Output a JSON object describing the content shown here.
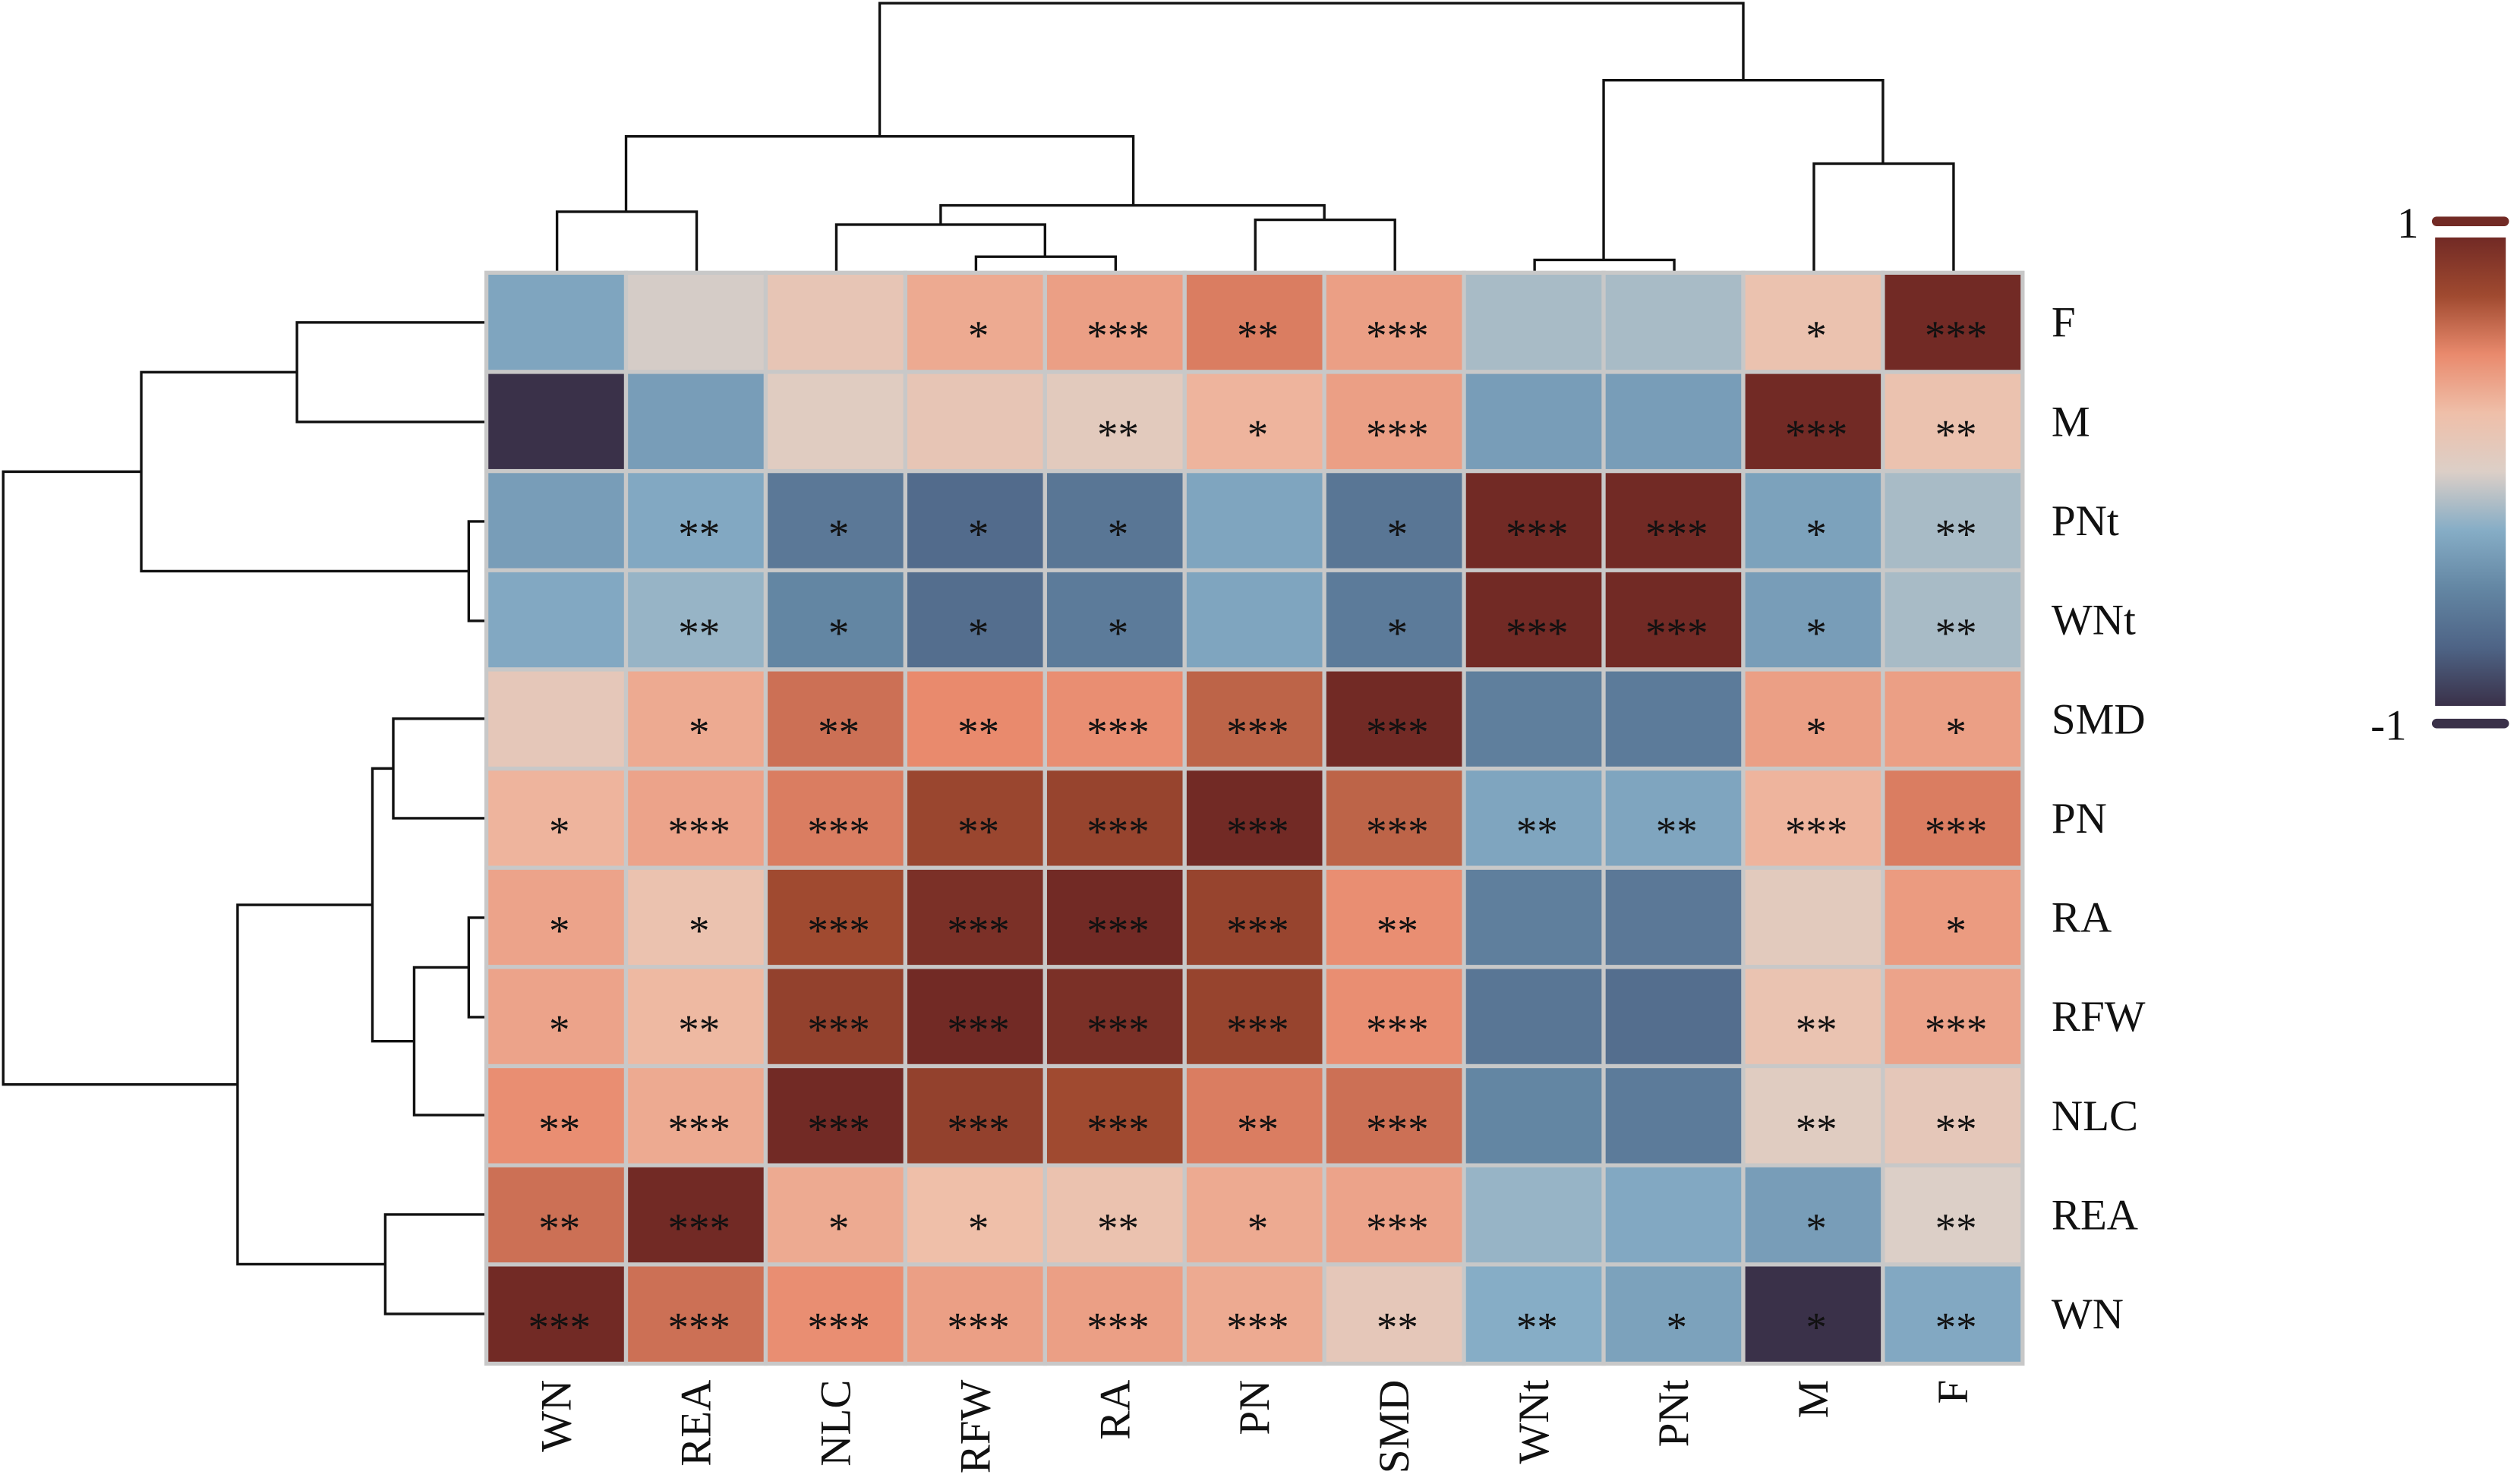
{
  "chart_data": {
    "type": "heatmap",
    "title": "",
    "columns": [
      "WN",
      "REA",
      "NLC",
      "RFW",
      "RA",
      "PN",
      "SMD",
      "WNt",
      "PNt",
      "M",
      "F"
    ],
    "rows": [
      "F",
      "M",
      "PNt",
      "WNt",
      "SMD",
      "PN",
      "RA",
      "RFW",
      "NLC",
      "REA",
      "WN"
    ],
    "values": [
      [
        -0.3,
        -0.02,
        0.15,
        0.35,
        0.4,
        0.55,
        0.4,
        -0.15,
        -0.15,
        0.2,
        1.0
      ],
      [
        -1.0,
        -0.35,
        0.05,
        0.15,
        0.08,
        0.3,
        0.4,
        -0.35,
        -0.35,
        1.0,
        0.2
      ],
      [
        -0.35,
        -0.28,
        -0.6,
        -0.7,
        -0.62,
        -0.3,
        -0.62,
        1.0,
        1.0,
        -0.32,
        -0.15
      ],
      [
        -0.28,
        -0.2,
        -0.5,
        -0.68,
        -0.58,
        -0.3,
        -0.58,
        1.0,
        1.0,
        -0.35,
        -0.15
      ],
      [
        0.12,
        0.35,
        0.6,
        0.5,
        0.48,
        0.65,
        1.0,
        -0.55,
        -0.58,
        0.4,
        0.4
      ],
      [
        0.3,
        0.38,
        0.55,
        0.78,
        0.8,
        1.0,
        0.65,
        -0.3,
        -0.3,
        0.3,
        0.55
      ],
      [
        0.38,
        0.2,
        0.75,
        0.95,
        1.0,
        0.8,
        0.48,
        -0.55,
        -0.6,
        0.08,
        0.42
      ],
      [
        0.38,
        0.28,
        0.82,
        1.0,
        0.95,
        0.8,
        0.48,
        -0.62,
        -0.68,
        0.18,
        0.38
      ],
      [
        0.48,
        0.35,
        1.0,
        0.82,
        0.75,
        0.55,
        0.6,
        -0.5,
        -0.58,
        0.05,
        0.12
      ],
      [
        0.6,
        1.0,
        0.35,
        0.25,
        0.2,
        0.35,
        0.38,
        -0.2,
        -0.28,
        -0.35,
        0.0
      ],
      [
        1.0,
        0.6,
        0.48,
        0.4,
        0.4,
        0.35,
        0.12,
        -0.25,
        -0.32,
        -1.0,
        -0.28
      ]
    ],
    "significance": [
      [
        "",
        "",
        "",
        "*",
        "***",
        "**",
        "***",
        "",
        "",
        "*",
        "***"
      ],
      [
        "",
        "",
        "",
        "",
        "**",
        "*",
        "***",
        "",
        "",
        "***",
        "**"
      ],
      [
        "",
        "**",
        "*",
        "*",
        "*",
        "",
        "*",
        "***",
        "***",
        "*",
        "**"
      ],
      [
        "",
        "**",
        "*",
        "*",
        "*",
        "",
        "*",
        "***",
        "***",
        "*",
        "**"
      ],
      [
        "",
        "*",
        "**",
        "**",
        "***",
        "***",
        "***",
        "",
        "",
        "*",
        "*"
      ],
      [
        "*",
        "***",
        "***",
        "**",
        "***",
        "***",
        "***",
        "**",
        "**",
        "***",
        "***"
      ],
      [
        "*",
        "*",
        "***",
        "***",
        "***",
        "***",
        "**",
        "",
        "",
        "",
        "*"
      ],
      [
        "*",
        "**",
        "***",
        "***",
        "***",
        "***",
        "***",
        "",
        "",
        "**",
        "***"
      ],
      [
        "**",
        "***",
        "***",
        "***",
        "***",
        "**",
        "***",
        "",
        "",
        "**",
        "**"
      ],
      [
        "**",
        "***",
        "*",
        "*",
        "**",
        "*",
        "***",
        "",
        "",
        "*",
        "**"
      ],
      [
        "***",
        "***",
        "***",
        "***",
        "***",
        "***",
        "**",
        "**",
        "*",
        "*",
        "**"
      ]
    ],
    "colorbar": {
      "range": [
        -1,
        1
      ],
      "max_label": "1",
      "min_label": "-1",
      "colors": [
        "#3a3149",
        "#4e6486",
        "#6386a3",
        "#86adc6",
        "#dccfc7",
        "#efbfa9",
        "#e98a6d",
        "#a04a30",
        "#722a25"
      ]
    },
    "cell_border_color": "#c8c8c8",
    "dendrograms": {
      "rows": true,
      "columns": true
    }
  }
}
